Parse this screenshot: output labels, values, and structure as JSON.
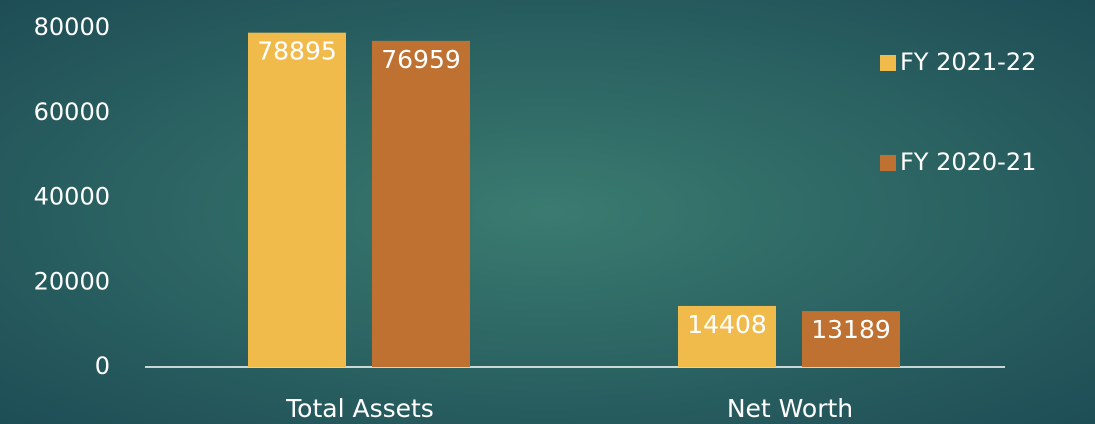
{
  "chart_data": {
    "type": "bar",
    "categories": [
      "Total Assets",
      "Net Worth"
    ],
    "series": [
      {
        "name": "FY 2021-22",
        "color": "#f0bb4a",
        "values": [
          78895,
          14408
        ]
      },
      {
        "name": "FY 2020-21",
        "color": "#bf7131",
        "values": [
          76959,
          13189
        ]
      }
    ],
    "ylim": [
      0,
      80000
    ],
    "yticks": [
      0,
      20000,
      40000,
      60000,
      80000
    ],
    "grid": false,
    "legend": "right"
  }
}
